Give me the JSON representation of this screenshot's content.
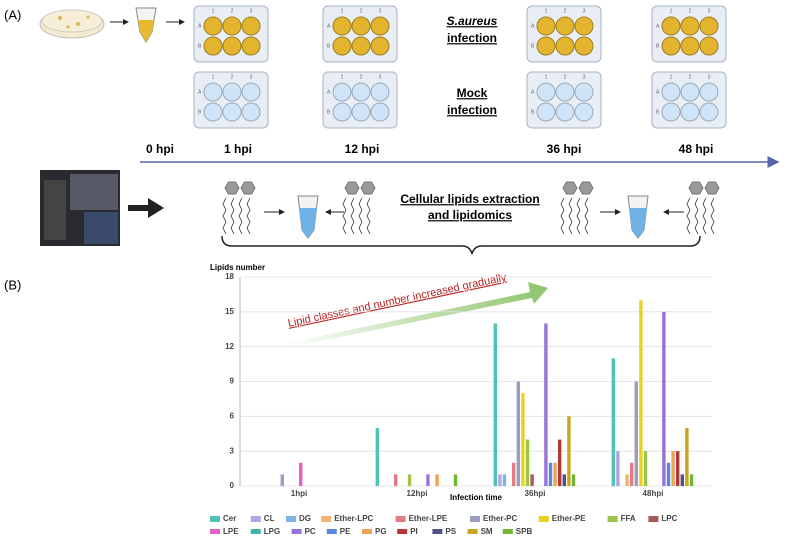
{
  "panel_a": {
    "label": "(A)",
    "infected_label": [
      "S.aureus",
      "infection"
    ],
    "mock_label": [
      "Mock",
      "infection"
    ],
    "plate_columns": [
      "1",
      "2",
      "3"
    ],
    "plate_rows": [
      "A",
      "B"
    ],
    "timeline": [
      "0 hpi",
      "1 hpi",
      "12 hpi",
      "36 hpi",
      "48 hpi"
    ],
    "extraction_label": [
      "Cellular lipids extraction",
      "and lipidomics"
    ]
  },
  "panel_b": {
    "label": "(B)"
  },
  "chart_data": {
    "type": "grouped_bar",
    "y_label": "Lipids number",
    "x_label": "Infection time",
    "annotation": "Lipid classes and number increased gradually",
    "categories": [
      "1hpi",
      "12hpi",
      "36hpi",
      "48hpi"
    ],
    "ylim": [
      0,
      18
    ],
    "yticks": [
      0,
      3,
      6,
      9,
      12,
      15,
      18
    ],
    "grid": true,
    "legend": "bottom",
    "series": [
      {
        "name": "Cer",
        "color": "#4fc4b4",
        "values": [
          0,
          5,
          14,
          11
        ]
      },
      {
        "name": "CL",
        "color": "#b3a3e3",
        "values": [
          0,
          0,
          1,
          3
        ]
      },
      {
        "name": "DG",
        "color": "#7fb2e6",
        "values": [
          0,
          0,
          1,
          0
        ]
      },
      {
        "name": "Ether-LPC",
        "color": "#f2b574",
        "values": [
          0,
          0,
          0,
          1
        ]
      },
      {
        "name": "Ether-LPE",
        "color": "#e27b84",
        "values": [
          0,
          1,
          2,
          2
        ]
      },
      {
        "name": "Ether-PC",
        "color": "#9a9cc2",
        "values": [
          1,
          0,
          9,
          9
        ]
      },
      {
        "name": "Ether-PE",
        "color": "#e9d21f",
        "values": [
          0,
          0,
          8,
          16
        ]
      },
      {
        "name": "FFA",
        "color": "#9cc447",
        "values": [
          0,
          1,
          4,
          3
        ]
      },
      {
        "name": "LPC",
        "color": "#a85a55",
        "values": [
          0,
          0,
          1,
          0
        ]
      },
      {
        "name": "LPE",
        "color": "#e063c4",
        "values": [
          2,
          0,
          0,
          0
        ]
      },
      {
        "name": "LPG",
        "color": "#3fb3a9",
        "values": [
          0,
          0,
          0,
          0
        ]
      },
      {
        "name": "PC",
        "color": "#9574d6",
        "values": [
          0,
          1,
          14,
          15
        ]
      },
      {
        "name": "PE",
        "color": "#5a86e2",
        "values": [
          0,
          0,
          2,
          2
        ]
      },
      {
        "name": "PG",
        "color": "#f0a352",
        "values": [
          0,
          1,
          2,
          3
        ]
      },
      {
        "name": "PI",
        "color": "#b4383a",
        "values": [
          0,
          0,
          4,
          3
        ]
      },
      {
        "name": "PS",
        "color": "#4f5382",
        "values": [
          0,
          0,
          1,
          1
        ]
      },
      {
        "name": "SM",
        "color": "#c7a51f",
        "values": [
          0,
          0,
          6,
          5
        ]
      },
      {
        "name": "SPB",
        "color": "#72b532",
        "values": [
          0,
          1,
          1,
          1
        ]
      }
    ]
  }
}
